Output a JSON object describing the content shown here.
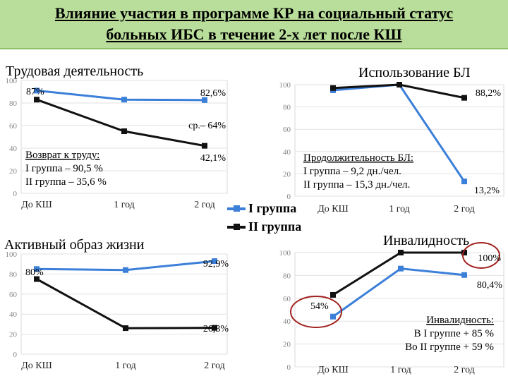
{
  "header": {
    "line1": "Влияние участия в программе КР на социальный статус",
    "line2": "больных ИБС в течение 2-х лет после КШ"
  },
  "legend": {
    "group1": "I группа",
    "group2": "II группа"
  },
  "colors": {
    "group1": "#3b7fd9",
    "group2": "#111111",
    "highlight": "#a0221f"
  },
  "chart_data": [
    {
      "type": "line",
      "title": "Трудовая деятельность",
      "categories": [
        "До КШ",
        "1 год",
        "2 год"
      ],
      "ylim": [
        0,
        100
      ],
      "yticks": [
        0,
        20,
        40,
        60,
        80,
        100
      ],
      "series": [
        {
          "name": "I группа",
          "values": [
            91,
            83,
            82.6
          ]
        },
        {
          "name": "II группа",
          "values": [
            83,
            55,
            42.1
          ]
        }
      ],
      "labels": [
        "87%",
        "82,6%",
        "ср.– 64%",
        "42,1%"
      ],
      "note": [
        "Возврат к труду:",
        "I группа  – 90,5 %",
        "II группа  – 35,6 %"
      ]
    },
    {
      "type": "line",
      "title": "Использование БЛ",
      "categories": [
        "До КШ",
        "1 год",
        "2 год"
      ],
      "ylim": [
        0,
        100
      ],
      "yticks": [
        0,
        20,
        40,
        60,
        80,
        100
      ],
      "series": [
        {
          "name": "I группа",
          "values": [
            95,
            100,
            13.2
          ]
        },
        {
          "name": "II группа",
          "values": [
            97,
            100,
            88.2
          ]
        }
      ],
      "labels": [
        "88,2%",
        "13,2%"
      ],
      "note": [
        "Продолжительность БЛ:",
        "I группа  – 9,2 дн./чел.",
        "II группа – 15,3 дн./чел."
      ]
    },
    {
      "type": "line",
      "title": "Активный образ жизни",
      "categories": [
        "До КШ",
        "1 год",
        "2 год"
      ],
      "ylim": [
        0,
        100
      ],
      "yticks": [
        0,
        20,
        40,
        60,
        80,
        100
      ],
      "series": [
        {
          "name": "I группа",
          "values": [
            85,
            84,
            92.9
          ]
        },
        {
          "name": "II группа",
          "values": [
            75,
            26,
            26.3
          ]
        }
      ],
      "labels": [
        "80%",
        "92,9%",
        "26,3%"
      ],
      "note": []
    },
    {
      "type": "line",
      "title": "Инвалидность",
      "categories": [
        "До КШ",
        "1 год",
        "2 год"
      ],
      "ylim": [
        0,
        100
      ],
      "yticks": [
        0,
        20,
        40,
        60,
        80,
        100
      ],
      "series": [
        {
          "name": "I группа",
          "values": [
            44,
            86,
            80.4
          ]
        },
        {
          "name": "II группа",
          "values": [
            63,
            100,
            100
          ]
        }
      ],
      "labels": [
        "100%",
        "80,4%",
        "54%"
      ],
      "note": [
        "Инвалидность:",
        "В I группе + 85 %",
        "Во II группе + 59 %"
      ]
    }
  ]
}
